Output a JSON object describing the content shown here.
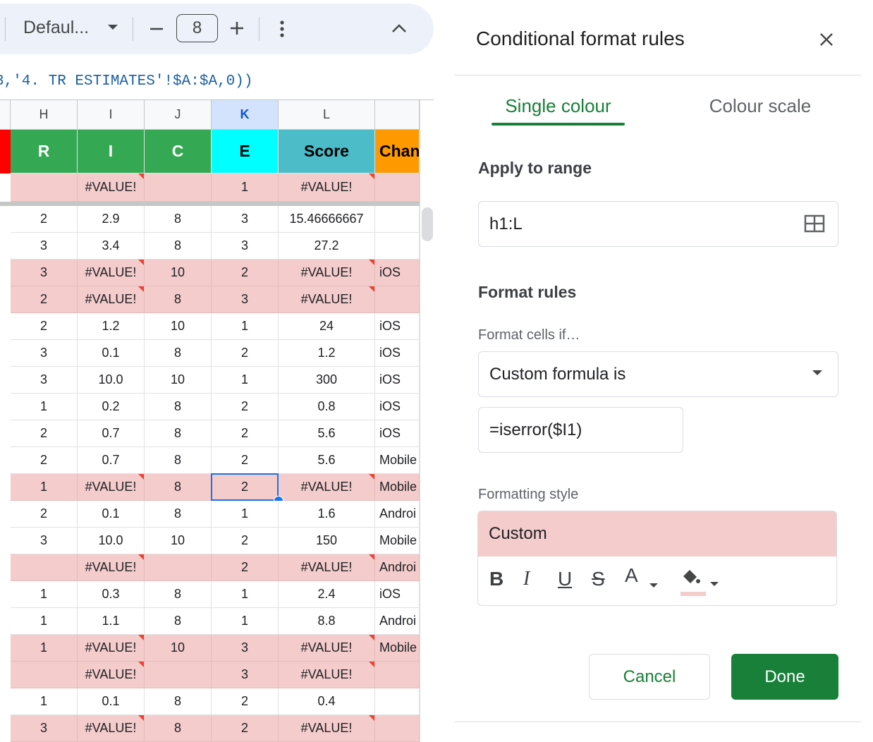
{
  "toolbar": {
    "font": "Defaul...",
    "font_size": "8"
  },
  "formula_bar": "3,'4. TR ESTIMATES'!$A:$A,0))",
  "sheet": {
    "columns": [
      "H",
      "I",
      "J",
      "K",
      "L",
      null
    ],
    "selected_column": 3,
    "header_row": [
      "R",
      "I",
      "C",
      "E",
      "Score",
      "Chan"
    ],
    "header_colors": [
      "#34a853",
      "#34a853",
      "#34a853",
      "#00ffff",
      "#4bbcc8",
      "#ff9900"
    ],
    "header_text_colors": [
      "#ffffff",
      "#ffffff",
      "#ffffff",
      "#000000",
      "#000000",
      "#000000"
    ],
    "frozen_rows": 1,
    "highlight_color": "#f4cccc",
    "rows": [
      [
        null,
        "#VALUE!",
        null,
        "1",
        "#VALUE!",
        null
      ],
      [
        "2",
        "2.9",
        "8",
        "3",
        "15.46666667",
        null
      ],
      [
        "3",
        "3.4",
        "8",
        "3",
        "27.2",
        null
      ],
      [
        "3",
        "#VALUE!",
        "10",
        "2",
        "#VALUE!",
        "iOS"
      ],
      [
        "2",
        "#VALUE!",
        "8",
        "3",
        "#VALUE!",
        null
      ],
      [
        "2",
        "1.2",
        "10",
        "1",
        "24",
        "iOS"
      ],
      [
        "3",
        "0.1",
        "8",
        "2",
        "1.2",
        "iOS"
      ],
      [
        "3",
        "10.0",
        "10",
        "1",
        "300",
        "iOS"
      ],
      [
        "1",
        "0.2",
        "8",
        "2",
        "0.8",
        "iOS"
      ],
      [
        "2",
        "0.7",
        "8",
        "2",
        "5.6",
        "iOS"
      ],
      [
        "2",
        "0.7",
        "8",
        "2",
        "5.6",
        "Mobile"
      ],
      [
        "1",
        "#VALUE!",
        "8",
        "2",
        "#VALUE!",
        "Mobile"
      ],
      [
        "2",
        "0.1",
        "8",
        "1",
        "1.6",
        "Androi"
      ],
      [
        "3",
        "10.0",
        "10",
        "2",
        "150",
        "Mobile"
      ],
      [
        null,
        "#VALUE!",
        null,
        "2",
        "#VALUE!",
        "Androi"
      ],
      [
        "1",
        "0.3",
        "8",
        "1",
        "2.4",
        "iOS"
      ],
      [
        "1",
        "1.1",
        "8",
        "1",
        "8.8",
        "Androi"
      ],
      [
        "1",
        "#VALUE!",
        "10",
        "3",
        "#VALUE!",
        "Mobile"
      ],
      [
        null,
        "#VALUE!",
        null,
        "3",
        "#VALUE!",
        null
      ],
      [
        "1",
        "0.1",
        "8",
        "2",
        "0.4",
        null
      ],
      [
        "3",
        "#VALUE!",
        "8",
        "2",
        "#VALUE!",
        null
      ]
    ],
    "selected_cell": {
      "row": 11,
      "column": 3
    }
  },
  "panel": {
    "title": "Conditional format rules",
    "tabs": [
      "Single colour",
      "Colour scale"
    ],
    "active_tab": 0,
    "apply_to_range_label": "Apply to range",
    "range": "h1:L",
    "format_rules_label": "Format rules",
    "condition_label": "Format cells if…",
    "condition": "Custom formula is",
    "formula": "=iserror($I1)",
    "style_label": "Formatting style",
    "style_preset": "Custom",
    "style_tools": [
      "B",
      "I",
      "U",
      "S",
      "A"
    ],
    "buttons": [
      "Cancel",
      "Done"
    ]
  }
}
